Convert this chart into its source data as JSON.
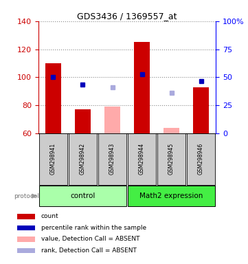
{
  "title": "GDS3436 / 1369557_at",
  "samples": [
    "GSM298941",
    "GSM298942",
    "GSM298943",
    "GSM298944",
    "GSM298945",
    "GSM298946"
  ],
  "bar_bottom": 60,
  "ylim_left": [
    60,
    140
  ],
  "ylim_right": [
    0,
    100
  ],
  "yticks_left": [
    60,
    80,
    100,
    120,
    140
  ],
  "yticks_right": [
    0,
    25,
    50,
    75,
    100
  ],
  "yticklabels_right": [
    "0",
    "25",
    "50",
    "75",
    "100%"
  ],
  "count_values": [
    110,
    77,
    null,
    125,
    null,
    93
  ],
  "count_color": "#cc0000",
  "rank_values": [
    100,
    95,
    null,
    102,
    null,
    97
  ],
  "rank_color": "#0000bb",
  "absent_value_values": [
    null,
    null,
    79,
    null,
    64,
    null
  ],
  "absent_value_color": "#ffaaaa",
  "absent_rank_values": [
    null,
    null,
    93,
    null,
    89,
    null
  ],
  "absent_rank_color": "#aaaadd",
  "bar_width": 0.55,
  "dotted_line_color": "#888888",
  "label_bg_color": "#cccccc",
  "group_control_color": "#aaffaa",
  "group_math2_color": "#44ee44",
  "legend_items": [
    {
      "color": "#cc0000",
      "label": "count"
    },
    {
      "color": "#0000bb",
      "label": "percentile rank within the sample"
    },
    {
      "color": "#ffaaaa",
      "label": "value, Detection Call = ABSENT"
    },
    {
      "color": "#aaaadd",
      "label": "rank, Detection Call = ABSENT"
    }
  ]
}
